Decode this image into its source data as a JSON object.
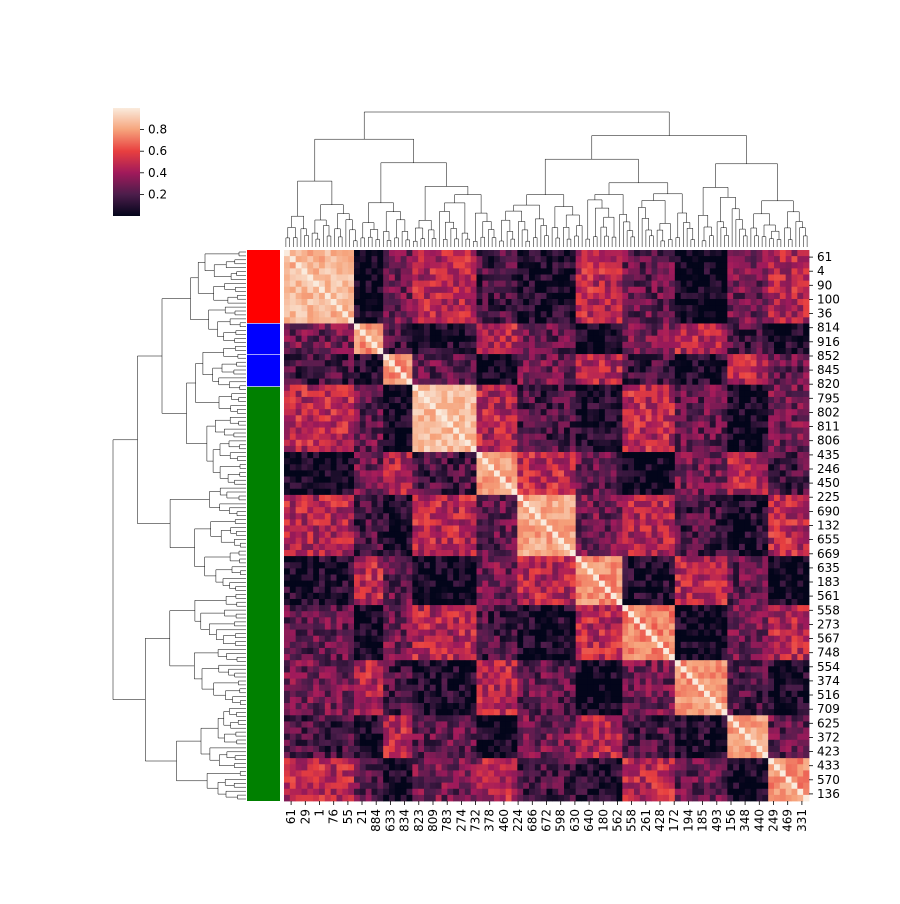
{
  "chart_data": {
    "type": "heatmap",
    "subtype": "clustermap",
    "title": "",
    "xlabel": "",
    "ylabel": "",
    "colormap": "rocket",
    "colorbar": {
      "ticks": [
        0.2,
        0.4,
        0.6,
        0.8
      ],
      "tick_labels": [
        "0.2",
        "0.4",
        "0.6",
        "0.8"
      ],
      "range": [
        0.0,
        1.0
      ]
    },
    "row_labels": [
      "61",
      "4",
      "90",
      "100",
      "36",
      "814",
      "916",
      "852",
      "845",
      "820",
      "795",
      "802",
      "811",
      "806",
      "435",
      "246",
      "450",
      "225",
      "690",
      "132",
      "655",
      "669",
      "635",
      "183",
      "561",
      "558",
      "273",
      "567",
      "748",
      "554",
      "374",
      "516",
      "709",
      "625",
      "372",
      "423",
      "433",
      "570",
      "136"
    ],
    "col_labels": [
      "61",
      "29",
      "1",
      "76",
      "55",
      "21",
      "884",
      "633",
      "834",
      "823",
      "809",
      "783",
      "274",
      "732",
      "378",
      "460",
      "224",
      "686",
      "672",
      "598",
      "630",
      "640",
      "180",
      "562",
      "558",
      "261",
      "428",
      "172",
      "194",
      "185",
      "493",
      "156",
      "348",
      "440",
      "249",
      "469",
      "331"
    ],
    "row_color_groups": [
      {
        "color": "#ff0000",
        "start_fraction": 0.0,
        "end_fraction": 0.133
      },
      {
        "color": "#0000ff",
        "start_fraction": 0.133,
        "end_fraction": 0.19
      },
      {
        "color": "#0000ff",
        "start_fraction": 0.19,
        "end_fraction": 0.248
      },
      {
        "color": "#008000",
        "start_fraction": 0.248,
        "end_fraction": 1.0
      }
    ],
    "clusters": [
      {
        "start": 0.0,
        "end": 0.133,
        "value": 0.95
      },
      {
        "start": 0.133,
        "end": 0.19,
        "value": 0.85
      },
      {
        "start": 0.19,
        "end": 0.248,
        "value": 0.85
      },
      {
        "start": 0.248,
        "end": 0.37,
        "value": 0.96
      },
      {
        "start": 0.37,
        "end": 0.44,
        "value": 0.88
      },
      {
        "start": 0.44,
        "end": 0.56,
        "value": 0.9
      },
      {
        "start": 0.56,
        "end": 0.64,
        "value": 0.85
      },
      {
        "start": 0.64,
        "end": 0.74,
        "value": 0.82
      },
      {
        "start": 0.74,
        "end": 0.84,
        "value": 0.86
      },
      {
        "start": 0.84,
        "end": 0.92,
        "value": 0.88
      },
      {
        "start": 0.92,
        "end": 1.0,
        "value": 0.85
      }
    ]
  }
}
